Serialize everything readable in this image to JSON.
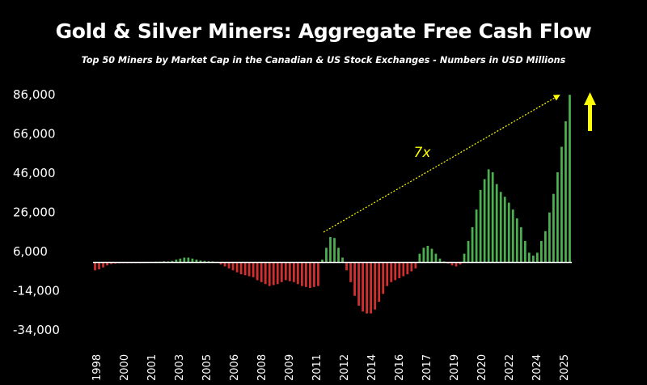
{
  "chart_data": {
    "type": "bar",
    "title": "Gold & Silver Miners: Aggregate Free Cash Flow",
    "subtitle": "Top 50 Miners by Market Cap in the Canadian & US Stock Exchanges - Numbers in USD Millions",
    "xlabel": "",
    "ylabel": "",
    "ylim": [
      -34000,
      86000
    ],
    "yticks": [
      "86,000",
      "66,000",
      "46,000",
      "26,000",
      "6,000",
      "-14,000",
      "-34,000"
    ],
    "ytick_values": [
      86000,
      66000,
      46000,
      26000,
      6000,
      -14000,
      -34000
    ],
    "xticks": [
      "1998",
      "2000",
      "2001",
      "2003",
      "2005",
      "2006",
      "2008",
      "2009",
      "2011",
      "2012",
      "2014",
      "2016",
      "2017",
      "2019",
      "2020",
      "2022",
      "2024",
      "2025"
    ],
    "grid": false,
    "legend": "none",
    "annotation": "7x",
    "colors": {
      "positive": "#4caf50",
      "negative": "#d32f2f",
      "annotation": "#ffff00",
      "baseline": "#ffffff"
    },
    "values": [
      -4000,
      -3500,
      -2500,
      -1500,
      -800,
      -500,
      -400,
      -300,
      -300,
      -300,
      -300,
      -300,
      -200,
      200,
      300,
      400,
      400,
      600,
      500,
      800,
      1500,
      2000,
      2500,
      2500,
      2000,
      1500,
      1000,
      800,
      600,
      500,
      300,
      -1000,
      -2000,
      -3000,
      -4000,
      -5000,
      -6000,
      -6500,
      -7000,
      -7500,
      -9000,
      -10000,
      -11000,
      -12000,
      -11500,
      -11000,
      -10000,
      -9000,
      -9500,
      -10000,
      -11000,
      -12000,
      -12500,
      -13000,
      -12500,
      -12000,
      1500,
      7500,
      13000,
      12500,
      7500,
      2500,
      -4000,
      -10000,
      -17000,
      -22000,
      -25000,
      -26000,
      -26000,
      -24000,
      -20000,
      -16000,
      -12000,
      -10000,
      -9000,
      -8000,
      -7000,
      -6000,
      -4500,
      -3000,
      4500,
      7500,
      8500,
      7000,
      4500,
      2000,
      500,
      -500,
      -1500,
      -2000,
      -1000,
      4500,
      11000,
      18000,
      27000,
      37000,
      42500,
      47500,
      46000,
      40000,
      36000,
      33500,
      30500,
      27000,
      22500,
      18000,
      11000,
      5000,
      3500,
      5000,
      11000,
      16000,
      25500,
      35000,
      46000,
      59000,
      72000,
      85500
    ]
  }
}
